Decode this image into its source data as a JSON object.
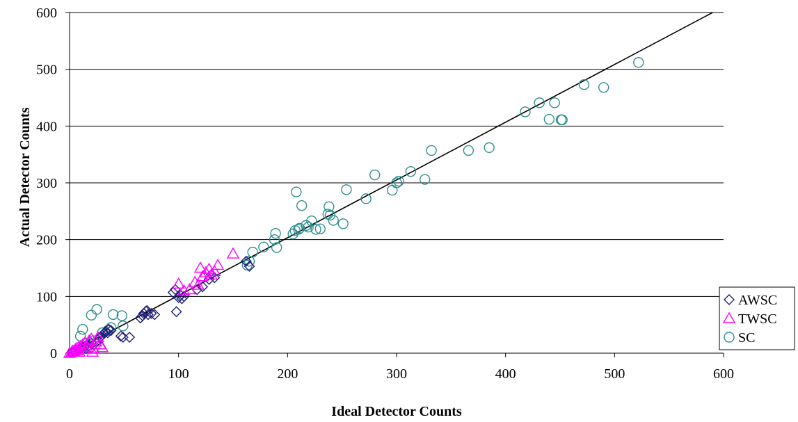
{
  "chart_data": {
    "type": "scatter",
    "xlabel": "Ideal Detector Counts",
    "ylabel": "Actual Detector Counts",
    "xlim": [
      0,
      600
    ],
    "ylim": [
      0,
      600
    ],
    "x_ticks": [
      "0",
      "100",
      "200",
      "300",
      "400",
      "500",
      "600"
    ],
    "y_ticks": [
      "0",
      "100",
      "200",
      "300",
      "400",
      "500",
      "600"
    ],
    "grid": "horizontal",
    "legend_position": "bottom-right",
    "reference_line": {
      "from": [
        0,
        0
      ],
      "to": [
        590,
        600
      ]
    },
    "series": [
      {
        "name": "AWSC",
        "marker": "diamond",
        "color": "#1f1f7a",
        "x": [
          2,
          4,
          5,
          6,
          8,
          10,
          12,
          14,
          15,
          16,
          18,
          20,
          22,
          25,
          28,
          30,
          32,
          33,
          35,
          36,
          38,
          47,
          49,
          55,
          65,
          67,
          68,
          70,
          71,
          72,
          75,
          78,
          95,
          97,
          98,
          100,
          102,
          103,
          105,
          117,
          122,
          128,
          130,
          133,
          162,
          165
        ],
        "y": [
          1,
          3,
          5,
          4,
          6,
          8,
          10,
          12,
          8,
          15,
          12,
          18,
          15,
          20,
          28,
          32,
          35,
          38,
          36,
          42,
          40,
          30,
          28,
          28,
          62,
          66,
          70,
          74,
          75,
          68,
          70,
          68,
          107,
          112,
          73,
          98,
          102,
          96,
          100,
          112,
          117,
          130,
          138,
          133,
          162,
          153
        ]
      },
      {
        "name": "TWSC",
        "marker": "triangle",
        "color": "#ff00ff",
        "x": [
          0,
          2,
          3,
          4,
          5,
          6,
          7,
          8,
          9,
          10,
          12,
          14,
          16,
          18,
          20,
          21,
          22,
          24,
          26,
          28,
          30,
          100,
          105,
          110,
          115,
          118,
          120,
          122,
          125,
          128,
          130,
          133,
          136,
          150
        ],
        "y": [
          0,
          2,
          4,
          3,
          6,
          8,
          5,
          10,
          2,
          12,
          15,
          18,
          10,
          22,
          25,
          2,
          8,
          20,
          28,
          15,
          10,
          122,
          110,
          112,
          125,
          120,
          150,
          135,
          142,
          148,
          138,
          144,
          155,
          175
        ]
      },
      {
        "name": "SC",
        "marker": "circle",
        "color": "#2f8f8f",
        "x": [
          10,
          12,
          15,
          17,
          19,
          20,
          22,
          25,
          30,
          35,
          38,
          40,
          48,
          49,
          163,
          165,
          168,
          178,
          188,
          189,
          190,
          205,
          207,
          208,
          210,
          211,
          213,
          217,
          219,
          222,
          226,
          230,
          237,
          238,
          239,
          242,
          251,
          254,
          272,
          280,
          296,
          300,
          302,
          326,
          313,
          332,
          366,
          385,
          418,
          431,
          440,
          445,
          451,
          452,
          472,
          490,
          522
        ],
        "y": [
          30,
          42,
          18,
          14,
          10,
          67,
          22,
          77,
          36,
          40,
          45,
          68,
          66,
          48,
          155,
          162,
          178,
          187,
          200,
          211,
          186,
          210,
          216,
          284,
          218,
          220,
          260,
          225,
          222,
          233,
          218,
          219,
          245,
          258,
          243,
          234,
          228,
          288,
          272,
          314,
          287,
          300,
          303,
          306,
          320,
          357,
          357,
          362,
          425,
          441,
          412,
          441,
          411,
          411,
          473,
          468,
          512
        ]
      }
    ]
  }
}
